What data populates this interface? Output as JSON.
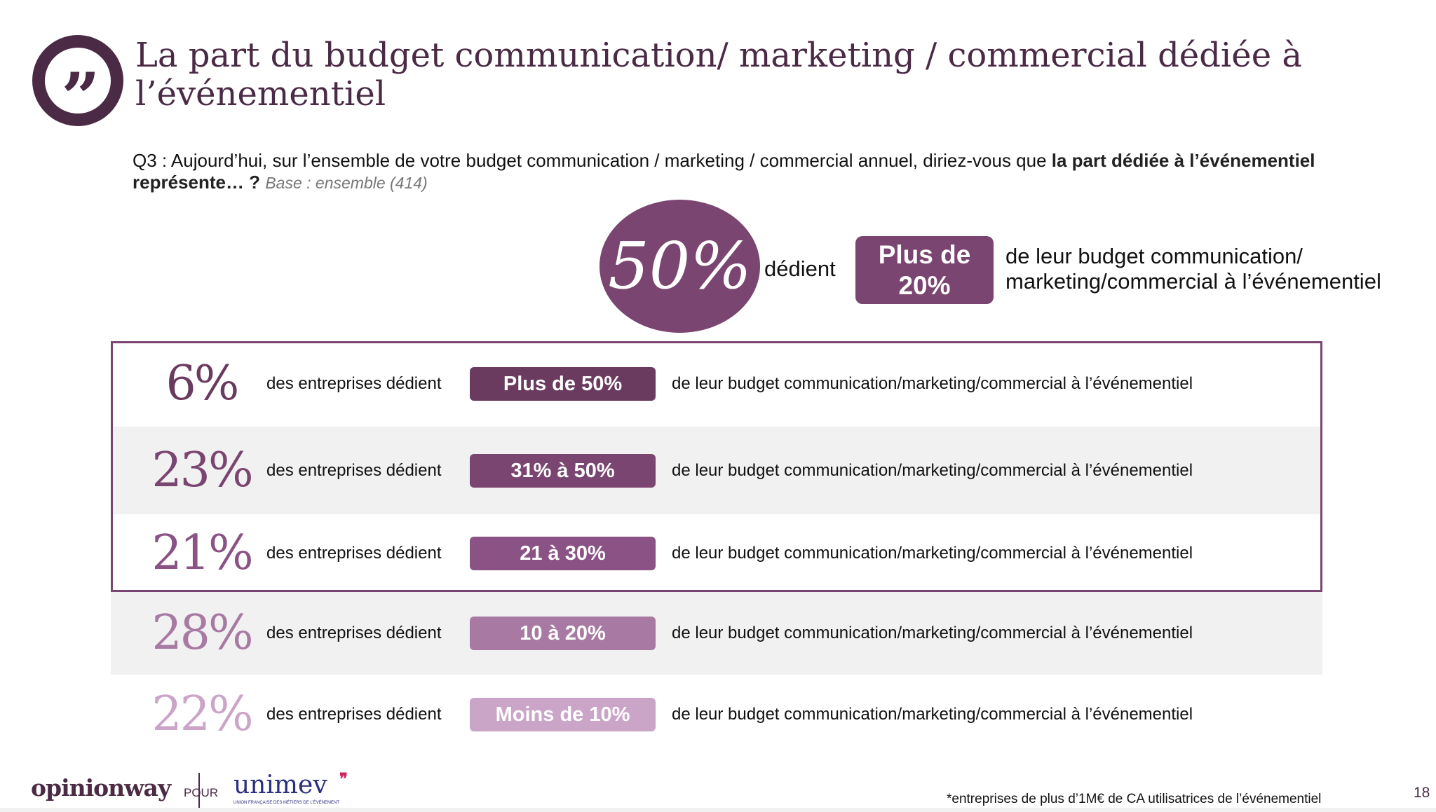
{
  "title": "La part du budget communication/ marketing / commercial dédiée à l’événementiel",
  "question": {
    "prefix": "Q3 :  Aujourd’hui, sur l’ensemble de votre budget communication / marketing / commercial annuel, diriez-vous que ",
    "bold": "la part dédiée à l’événementiel représente… ?",
    "base": "Base : ensemble (414)"
  },
  "highlight": {
    "value": "50%",
    "verb": "dédient",
    "badge_line1": "Plus de",
    "badge_line2": "20%",
    "text_line1": "de leur budget communication/",
    "text_line2": "marketing/commercial à l’événementiel"
  },
  "rows": [
    {
      "value": "6%",
      "desc": "des entreprises dédient",
      "badge": "Plus de 50%",
      "rest": "de leur budget communication/marketing/commercial à l’événementiel",
      "color": "#6a3b5e"
    },
    {
      "value": "23%",
      "desc": "des entreprises dédient",
      "badge": "31% à 50%",
      "rest": "de leur budget communication/marketing/commercial à l’événementiel",
      "color": "#7a4570"
    },
    {
      "value": "21%",
      "desc": "des entreprises dédient",
      "badge": "21 à 30%",
      "rest": "de leur budget communication/marketing/commercial à l’événementiel",
      "color": "#8b5285"
    },
    {
      "value": "28%",
      "desc": "des entreprises dédient",
      "badge": "10 à 20%",
      "rest": "de leur budget communication/marketing/commercial à l’événementiel",
      "color": "#a87aa3"
    },
    {
      "value": "22%",
      "desc": "des entreprises dédient",
      "badge": "Moins de 10%",
      "rest": "de leur budget communication/marketing/commercial à l’événementiel",
      "color": "#cba5c8"
    }
  ],
  "footer": {
    "logo_left": "opinionway",
    "pour": "POUR",
    "logo_right": "unimev",
    "logo_right_sub": "UNION FRANÇAISE DES MÉTIERS DE L’ÉVÉNEMENT",
    "note": "*entreprises de plus d’1M€ de CA utilisatrices de l’événementiel",
    "page": "18"
  }
}
